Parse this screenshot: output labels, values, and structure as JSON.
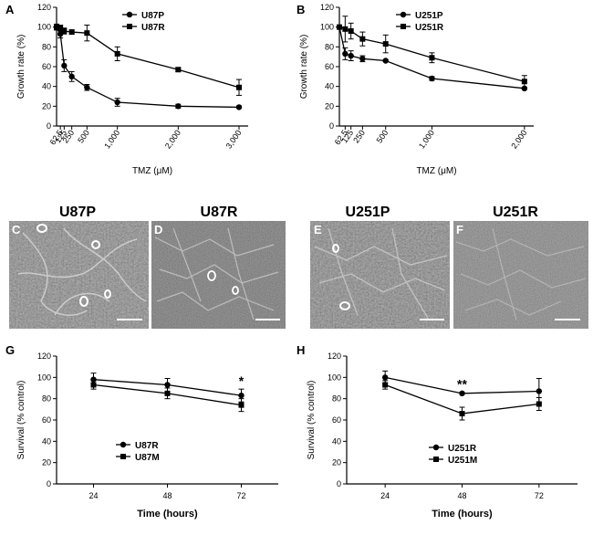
{
  "chart_data": [
    {
      "panel": "A",
      "type": "line",
      "xlabel": "TMZ (μM)",
      "ylabel": "Growth rate (%)",
      "xlim": [
        0,
        3150
      ],
      "ylim": [
        0,
        120
      ],
      "x_ticks": [
        62.5,
        125,
        250,
        500,
        1000,
        2000,
        3000
      ],
      "x_tick_labels": [
        "62.5",
        "125",
        "250",
        "500",
        "1,000",
        "2,000",
        "3,000"
      ],
      "y_ticks": [
        0,
        20,
        40,
        60,
        80,
        100,
        120
      ],
      "legend": "top-center",
      "series": [
        {
          "name": "U87P",
          "marker": "circle",
          "x": [
            0,
            62.5,
            125,
            250,
            500,
            1000,
            2000,
            3000
          ],
          "y": [
            100,
            93,
            61,
            50,
            39,
            24,
            20,
            19
          ],
          "err": [
            3,
            4,
            6,
            5,
            3,
            4,
            2,
            1
          ]
        },
        {
          "name": "U87R",
          "marker": "square",
          "x": [
            0,
            62.5,
            125,
            250,
            500,
            1000,
            2000,
            3000
          ],
          "y": [
            100,
            99,
            96,
            95,
            94,
            73,
            57,
            39
          ],
          "err": [
            2,
            3,
            3,
            2,
            8,
            7,
            2,
            8
          ]
        }
      ]
    },
    {
      "panel": "B",
      "type": "line",
      "xlabel": "TMZ (μM)",
      "ylabel": "Growth rate (%)",
      "xlim": [
        0,
        2100
      ],
      "ylim": [
        0,
        120
      ],
      "x_ticks": [
        62.5,
        125,
        250,
        500,
        1000,
        2000
      ],
      "x_tick_labels": [
        "62.5",
        "125",
        "250",
        "500",
        "1,000",
        "2,000"
      ],
      "y_ticks": [
        0,
        20,
        40,
        60,
        80,
        100,
        120
      ],
      "legend": "top-center",
      "series": [
        {
          "name": "U251P",
          "marker": "circle",
          "x": [
            0,
            62.5,
            125,
            250,
            500,
            1000,
            2000
          ],
          "y": [
            100,
            73,
            71,
            68,
            66,
            48,
            38
          ],
          "err": [
            2,
            6,
            5,
            3,
            1,
            2,
            1
          ]
        },
        {
          "name": "U251R",
          "marker": "square",
          "x": [
            0,
            62.5,
            125,
            250,
            500,
            1000,
            2000
          ],
          "y": [
            100,
            98,
            96,
            88,
            83,
            69,
            45
          ],
          "err": [
            2,
            13,
            8,
            7,
            9,
            5,
            6
          ]
        }
      ]
    },
    {
      "panel": "G",
      "type": "line",
      "xlabel": "Time (hours)",
      "ylabel": "Survival (% control)",
      "xlim": [
        12,
        84
      ],
      "ylim": [
        0,
        120
      ],
      "x_ticks": [
        24,
        48,
        72
      ],
      "y_ticks": [
        0,
        20,
        40,
        60,
        80,
        100,
        120
      ],
      "legend": "center-left",
      "annotations": [
        {
          "text": "*",
          "x": 72
        }
      ],
      "series": [
        {
          "name": "U87R",
          "marker": "circle",
          "x": [
            24,
            48,
            72
          ],
          "y": [
            98,
            93,
            83
          ],
          "err": [
            6,
            6,
            6
          ]
        },
        {
          "name": "U87M",
          "marker": "square",
          "x": [
            24,
            48,
            72
          ],
          "y": [
            93,
            85,
            74
          ],
          "err": [
            4,
            5,
            6
          ]
        }
      ]
    },
    {
      "panel": "H",
      "type": "line",
      "xlabel": "Time (hours)",
      "ylabel": "Survival (% control)",
      "xlim": [
        12,
        84
      ],
      "ylim": [
        0,
        120
      ],
      "x_ticks": [
        24,
        48,
        72
      ],
      "y_ticks": [
        0,
        20,
        40,
        60,
        80,
        100,
        120
      ],
      "legend": "center-left",
      "annotations": [
        {
          "text": "**",
          "x": 48
        }
      ],
      "series": [
        {
          "name": "U251R",
          "marker": "circle",
          "x": [
            24,
            48,
            72
          ],
          "y": [
            100,
            85,
            87
          ],
          "err": [
            6,
            1,
            12
          ]
        },
        {
          "name": "U251M",
          "marker": "square",
          "x": [
            24,
            48,
            72
          ],
          "y": [
            93,
            66,
            75
          ],
          "err": [
            4,
            6,
            6
          ]
        }
      ]
    }
  ],
  "images": [
    {
      "panel": "C",
      "title": "U87P"
    },
    {
      "panel": "D",
      "title": "U87R"
    },
    {
      "panel": "E",
      "title": "U251P"
    },
    {
      "panel": "F",
      "title": "U251R"
    }
  ]
}
